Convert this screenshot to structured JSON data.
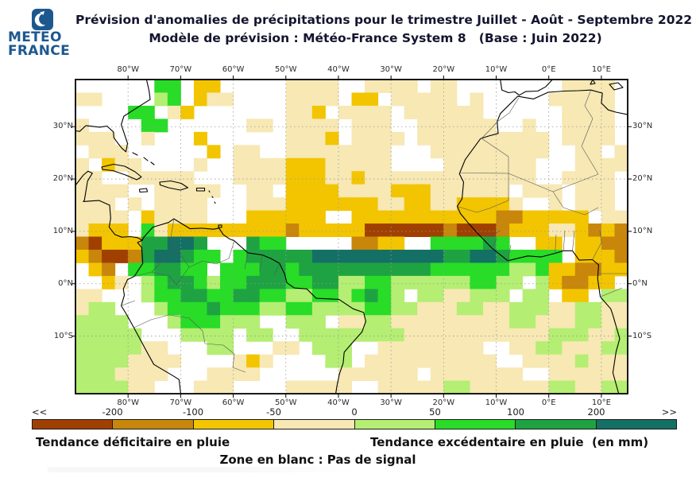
{
  "header": {
    "logo": {
      "line1": "METEO",
      "line2": "FRANCE",
      "brand_color": "#1c588f"
    },
    "title_line1": "Prévision d'anomalies de précipitations pour le trimestre Juillet - Août - Septembre 2022",
    "title_line2": "Modèle de prévision : Météo-France System 8   (Base : Juin 2022)"
  },
  "legend": {
    "deficit_label": "Tendance déficitaire en pluie",
    "excess_label": "Tendance excédentaire en pluie  (en mm)",
    "no_signal_label": "Zone en blanc : Pas de signal"
  },
  "colorbar": {
    "tick_labels": [
      "<<",
      "-200",
      "-100",
      "-50",
      "0",
      "50",
      "100",
      "200",
      ">>"
    ],
    "segment_colors": [
      "#a04000",
      "#c8860a",
      "#f2c500",
      "#f7e8b4",
      "#b4ee72",
      "#28dc28",
      "#1fa342",
      "#147065"
    ],
    "units": "mm"
  },
  "chart_data": {
    "type": "heatmap",
    "title": "Prévision d'anomalies de précipitations JAS 2022 - Météo-France System 8",
    "units": "mm",
    "axes": {
      "lon_labels": [
        "80°W",
        "70°W",
        "60°W",
        "50°W",
        "40°W",
        "30°W",
        "20°W",
        "10°W",
        "0°E",
        "10°E"
      ],
      "lat_labels": [
        "30°N",
        "20°N",
        "10°N",
        "0°N",
        "10°S"
      ]
    },
    "value_bins_mm": [
      -200,
      -100,
      -50,
      0,
      50,
      100,
      200
    ],
    "palette": {
      "a": "#f7e8b4",
      "b": "#f2c500",
      "c": "#c8860a",
      "d": "#a04000",
      "e": "#b4ee72",
      "f": "#28dc28",
      "g": "#1fa342",
      "h": "#147065"
    },
    "grid": {
      "cols": 42,
      "rows": 24,
      "cell_deg": 2.5,
      "legend_codes": {
        ".": "blanc : pas de signal",
        "a": "-50 à 0 mm",
        "b": "-100 à -50 mm",
        "c": "-200 à -100 mm",
        "d": "inférieur à -200 mm",
        "e": "0 à +50 mm",
        "f": "+50 à +100 mm",
        "g": "+100 à +200 mm",
        "h": "supérieur à +200 mm"
      },
      "rows_data": [
        "......ff.bb.....aaaa..aaaa.aa........aaaa.",
        "aa....ef.baa....aaaa.bb.aaaaa.a.....aaaaa.",
        "....ff.ab.......aab.aaaa.aaaaaa......aaaa.",
        "a....ff......aa.aaaa.aaa..aaaaaa..a..aaaa.",
        "aaa..a...b......aaab.aaaa.aaaaaaaaaa.aaaa.",
        ".aaa......b.aa..aaaaaaaa...aaaaaaaaa..aa.a",
        "a.baa....a..aaaabbbaaaaa....aaaaaaa...aaaa",
        "aa..aaaaa...aaaabbbaabaaaaaaaaaaaaa..aaaa.",
        "aaaa..aaaaa..aa.bbbbaaaabbbaaaaaa.aaa.aaa.",
        "aaa.a.aaaa...aaabbbbbbbaabbaabbbba..a.aaa.",
        "aaaa.baaaa...bbbbbb..bbbbbbbbbbbccbbbbb.aa",
        "abbb.fabbbbbbbbbcbbbbbddddddcdddcbbbaabcbc",
        "cdbbbgghhg...gff.....ccbb..ffffgf..bb.bbcc",
        "bcddcghhgff.fggggghhhhhhhhhhgghhgffff.bbbc",
        ".bc.ffggff.fffggfggggggggggffffffeefbbccbb",
        "..ba.efggfeffgggffggeeffeeeeeeffee.ebccbb.",
        "aa...effggffggffeeffefgfe.eeaaeee.ee.bb.ee",
        "aee...efffgfffeeffeeeeffeeaaaeeaaeeeaaeeaa",
        "eeee...efffeee..eee.aaeeaaaaaaaaaeeaaaeeaa",
        "eeeee...eeee.ee..eeeeeeeeaaaaaaaaaaaeeeaae",
        "eeeeeaa...ee...aa.eee..aaaaaaaa..aaeeaaaee",
        "eeeeaaaa....aba....ee.aaaaaaaaaa..aaaaeaaa",
        "eeeaaaa...aaaa......aaaaaa.aaaaaaa..aaaaaa",
        "eeeeaa...aaa....aaaaa..aaaaaeeaaaaaaeeaaee"
      ]
    }
  }
}
